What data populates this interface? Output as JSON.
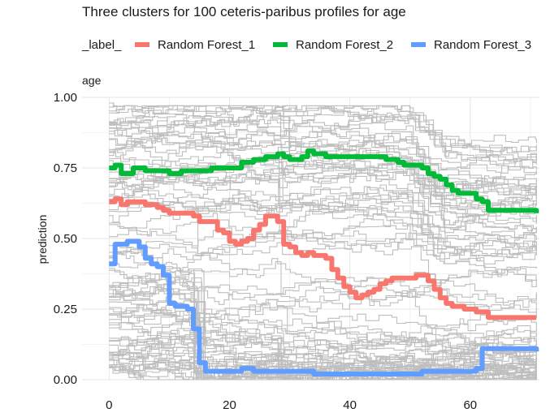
{
  "chart_data": {
    "type": "line",
    "title": "Three clusters for 100 ceteris-paribus profiles for age",
    "legend": {
      "title": "_label_",
      "placement": "top",
      "entries": [
        {
          "label": "Random Forest_1",
          "color": "#F8766D"
        },
        {
          "label": "Random Forest_2",
          "color": "#00BA38"
        },
        {
          "label": "Random Forest_3",
          "color": "#619CFF"
        }
      ]
    },
    "subtitle": "age",
    "xlabel": "",
    "ylabel": "prediction",
    "xlim": [
      0,
      71
    ],
    "ylim": [
      0,
      1
    ],
    "x_ticks": [
      0,
      20,
      40,
      60
    ],
    "y_ticks": [
      0,
      0.25,
      0.5,
      0.75,
      1
    ],
    "y_tick_labels": [
      "0.00",
      "0.25",
      "0.50",
      "0.75",
      "1.00"
    ],
    "grid": true,
    "background_profiles": {
      "count": 100,
      "color": "#bebebe"
    },
    "series": [
      {
        "name": "Random Forest_1",
        "color": "#F8766D",
        "points": [
          [
            0,
            0.63
          ],
          [
            1,
            0.64
          ],
          [
            2,
            0.62
          ],
          [
            3,
            0.63
          ],
          [
            4,
            0.63
          ],
          [
            6,
            0.62
          ],
          [
            8,
            0.61
          ],
          [
            9,
            0.6
          ],
          [
            10,
            0.59
          ],
          [
            14,
            0.58
          ],
          [
            15,
            0.56
          ],
          [
            17,
            0.56
          ],
          [
            18,
            0.53
          ],
          [
            19,
            0.52
          ],
          [
            20,
            0.49
          ],
          [
            21,
            0.48
          ],
          [
            22,
            0.49
          ],
          [
            23,
            0.5
          ],
          [
            24,
            0.53
          ],
          [
            25,
            0.55
          ],
          [
            26,
            0.58
          ],
          [
            27,
            0.58
          ],
          [
            28,
            0.56
          ],
          [
            29,
            0.48
          ],
          [
            30,
            0.47
          ],
          [
            31,
            0.45
          ],
          [
            32,
            0.44
          ],
          [
            33,
            0.45
          ],
          [
            34,
            0.44
          ],
          [
            35,
            0.44
          ],
          [
            36,
            0.43
          ],
          [
            37,
            0.39
          ],
          [
            38,
            0.36
          ],
          [
            39,
            0.33
          ],
          [
            40,
            0.31
          ],
          [
            41,
            0.29
          ],
          [
            42,
            0.3
          ],
          [
            43,
            0.31
          ],
          [
            44,
            0.32
          ],
          [
            45,
            0.34
          ],
          [
            46,
            0.35
          ],
          [
            47,
            0.36
          ],
          [
            48,
            0.36
          ],
          [
            50,
            0.36
          ],
          [
            51,
            0.37
          ],
          [
            52,
            0.37
          ],
          [
            53,
            0.35
          ],
          [
            54,
            0.32
          ],
          [
            55,
            0.29
          ],
          [
            56,
            0.27
          ],
          [
            57,
            0.26
          ],
          [
            59,
            0.25
          ],
          [
            60,
            0.25
          ],
          [
            61,
            0.24
          ],
          [
            63,
            0.22
          ],
          [
            65,
            0.22
          ],
          [
            71,
            0.22
          ]
        ]
      },
      {
        "name": "Random Forest_2",
        "color": "#00BA38",
        "points": [
          [
            0,
            0.75
          ],
          [
            1,
            0.76
          ],
          [
            2,
            0.73
          ],
          [
            3,
            0.73
          ],
          [
            4,
            0.75
          ],
          [
            6,
            0.74
          ],
          [
            8,
            0.74
          ],
          [
            10,
            0.73
          ],
          [
            12,
            0.74
          ],
          [
            14,
            0.74
          ],
          [
            16,
            0.74
          ],
          [
            17,
            0.75
          ],
          [
            20,
            0.75
          ],
          [
            22,
            0.77
          ],
          [
            24,
            0.78
          ],
          [
            26,
            0.79
          ],
          [
            28,
            0.8
          ],
          [
            29,
            0.79
          ],
          [
            30,
            0.78
          ],
          [
            31,
            0.78
          ],
          [
            32,
            0.79
          ],
          [
            33,
            0.81
          ],
          [
            34,
            0.8
          ],
          [
            35,
            0.8
          ],
          [
            36,
            0.79
          ],
          [
            38,
            0.79
          ],
          [
            40,
            0.79
          ],
          [
            44,
            0.79
          ],
          [
            46,
            0.78
          ],
          [
            48,
            0.77
          ],
          [
            49,
            0.76
          ],
          [
            50,
            0.76
          ],
          [
            51,
            0.76
          ],
          [
            52,
            0.75
          ],
          [
            53,
            0.73
          ],
          [
            54,
            0.72
          ],
          [
            55,
            0.71
          ],
          [
            56,
            0.69
          ],
          [
            57,
            0.67
          ],
          [
            58,
            0.66
          ],
          [
            60,
            0.66
          ],
          [
            61,
            0.64
          ],
          [
            62,
            0.63
          ],
          [
            63,
            0.6
          ],
          [
            65,
            0.6
          ],
          [
            71,
            0.59
          ]
        ]
      },
      {
        "name": "Random Forest_3",
        "color": "#619CFF",
        "points": [
          [
            0,
            0.41
          ],
          [
            1,
            0.48
          ],
          [
            2,
            0.48
          ],
          [
            3,
            0.49
          ],
          [
            4,
            0.49
          ],
          [
            5,
            0.47
          ],
          [
            6,
            0.43
          ],
          [
            7,
            0.41
          ],
          [
            8,
            0.4
          ],
          [
            9,
            0.37
          ],
          [
            10,
            0.27
          ],
          [
            11,
            0.26
          ],
          [
            12,
            0.26
          ],
          [
            13,
            0.25
          ],
          [
            14,
            0.18
          ],
          [
            15,
            0.06
          ],
          [
            16,
            0.03
          ],
          [
            18,
            0.03
          ],
          [
            20,
            0.03
          ],
          [
            22,
            0.04
          ],
          [
            24,
            0.03
          ],
          [
            26,
            0.03
          ],
          [
            30,
            0.03
          ],
          [
            32,
            0.03
          ],
          [
            34,
            0.02
          ],
          [
            40,
            0.02
          ],
          [
            44,
            0.02
          ],
          [
            48,
            0.02
          ],
          [
            52,
            0.03
          ],
          [
            56,
            0.03
          ],
          [
            59,
            0.03
          ],
          [
            61,
            0.04
          ],
          [
            62,
            0.11
          ],
          [
            64,
            0.11
          ],
          [
            71,
            0.1
          ]
        ]
      }
    ]
  }
}
